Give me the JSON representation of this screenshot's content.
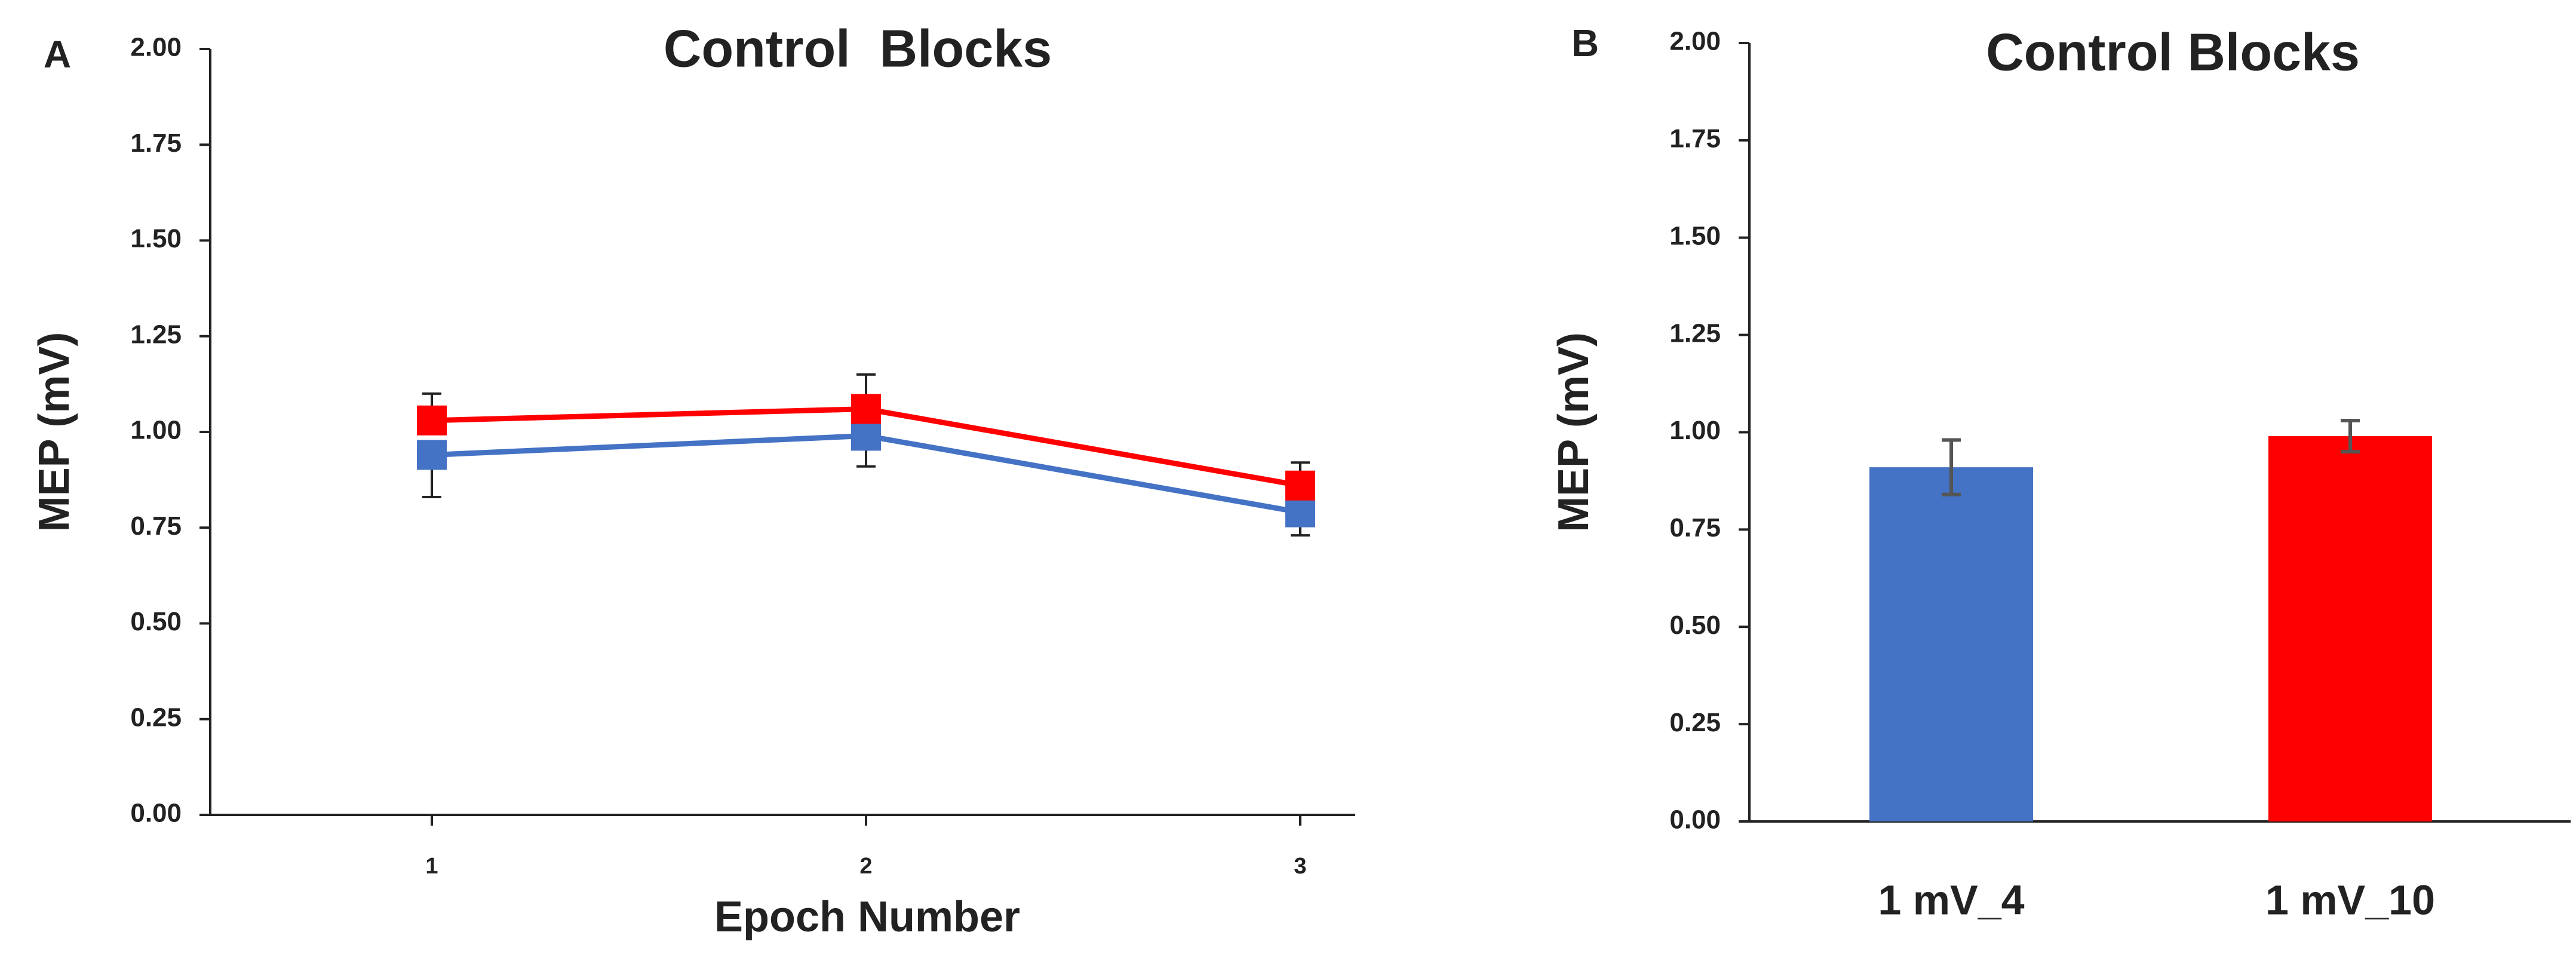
{
  "chart_data": [
    {
      "type": "line",
      "panel": "A",
      "title": "Control  Blocks",
      "y_label": "MEP (mV)",
      "x_label": "Epoch Number",
      "categories": [
        "1",
        "2",
        "3"
      ],
      "series": [
        {
          "color": "#4472c4",
          "values": [
            0.94,
            0.99,
            0.79
          ],
          "errors": [
            0.11,
            0.08,
            0.06
          ]
        },
        {
          "color": "#ff0000",
          "values": [
            1.03,
            1.06,
            0.86
          ],
          "errors": [
            0.07,
            0.09,
            0.06
          ]
        }
      ],
      "ylim": [
        0,
        2
      ],
      "yticks": [
        {
          "value": 0,
          "label": "0.00"
        },
        {
          "value": 0.25,
          "label": "0.25"
        },
        {
          "value": 0.5,
          "label": "0.50"
        },
        {
          "value": 0.75,
          "label": "0.75"
        },
        {
          "value": 1,
          "label": "1.00"
        },
        {
          "value": 1.25,
          "label": "1.25"
        },
        {
          "value": 1.5,
          "label": "1.50"
        },
        {
          "value": 1.75,
          "label": "1.75"
        },
        {
          "value": 2,
          "label": "2.00"
        }
      ]
    },
    {
      "type": "bar",
      "panel": "B",
      "title": "Control Blocks",
      "y_label": "MEP (mV)",
      "categories": [
        "1 mV_4",
        "1 mV_10"
      ],
      "values": [
        0.91,
        0.99
      ],
      "errors": [
        0.07,
        0.04
      ],
      "colors": [
        "#4472c4",
        "#ff0000"
      ],
      "ylim": [
        0,
        2
      ],
      "yticks": [
        {
          "value": 0,
          "label": "0.00"
        },
        {
          "value": 0.25,
          "label": "0.25"
        },
        {
          "value": 0.5,
          "label": "0.50"
        },
        {
          "value": 0.75,
          "label": "0.75"
        },
        {
          "value": 1,
          "label": "1.00"
        },
        {
          "value": 1.25,
          "label": "1.25"
        },
        {
          "value": 1.5,
          "label": "1.50"
        },
        {
          "value": 1.75,
          "label": "1.75"
        },
        {
          "value": 2,
          "label": "2.00"
        }
      ]
    }
  ]
}
